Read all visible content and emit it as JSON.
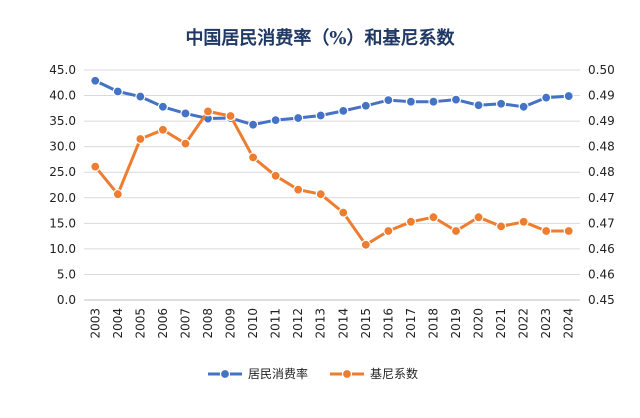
{
  "chart_data": {
    "type": "line",
    "title": "中国居民消费率（%）和基尼系数",
    "xlabel": "",
    "ylabel": "",
    "x": [
      "2003",
      "2004",
      "2005",
      "2006",
      "2007",
      "2008",
      "2009",
      "2010",
      "2011",
      "2012",
      "2013",
      "2014",
      "2015",
      "2016",
      "2017",
      "2018",
      "2019",
      "2020",
      "2021",
      "2022",
      "2023",
      "2024"
    ],
    "y_left": {
      "min": 0,
      "max": 45,
      "step": 5,
      "ticks": [
        "0.0",
        "5.0",
        "10.0",
        "15.0",
        "20.0",
        "25.0",
        "30.0",
        "35.0",
        "40.0",
        "45.0"
      ]
    },
    "y_right": {
      "min": 0.45,
      "max": 0.5,
      "ticks": [
        "0.45",
        "0.46",
        "0.46",
        "0.47",
        "0.47",
        "0.48",
        "0.48",
        "0.49",
        "0.49",
        "0.50"
      ]
    },
    "grid": true,
    "legend_position": "bottom",
    "series": [
      {
        "name": "居民消费率",
        "axis": "left",
        "color": "#4472C4",
        "values": [
          42.9,
          40.8,
          39.8,
          37.8,
          36.5,
          35.5,
          35.6,
          34.3,
          35.2,
          35.6,
          36.1,
          37.0,
          38.0,
          39.1,
          38.8,
          38.8,
          39.2,
          38.1,
          38.4,
          37.8,
          39.6,
          39.9
        ]
      },
      {
        "name": "基尼系数",
        "axis": "right",
        "color": "#ED7D31",
        "values": [
          0.479,
          0.473,
          0.485,
          0.487,
          0.484,
          0.491,
          0.49,
          0.481,
          0.477,
          0.474,
          0.473,
          0.469,
          0.462,
          0.465,
          0.467,
          0.468,
          0.465,
          0.468,
          0.466,
          0.467,
          0.465,
          0.465
        ]
      }
    ]
  }
}
